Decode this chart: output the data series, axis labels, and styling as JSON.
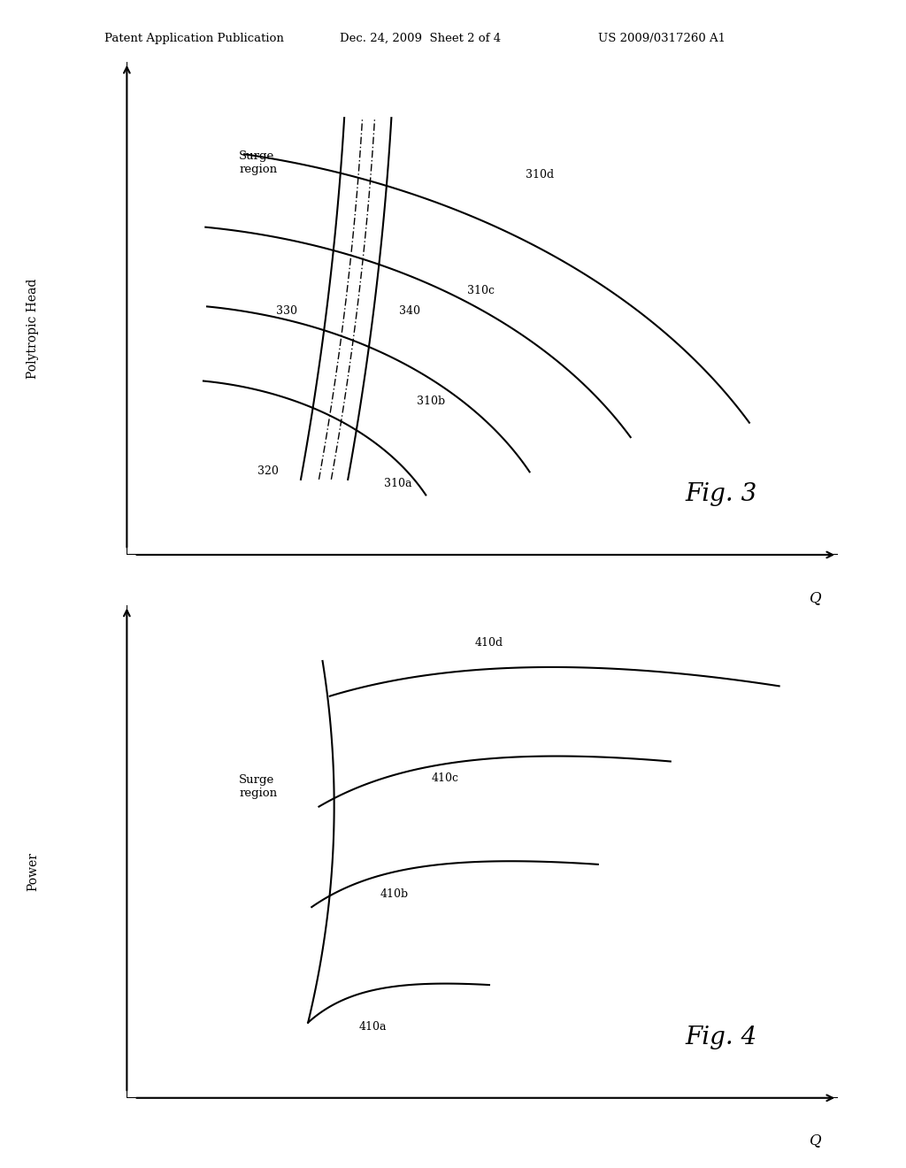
{
  "header_left": "Patent Application Publication",
  "header_mid": "Dec. 24, 2009  Sheet 2 of 4",
  "header_right": "US 2009/0317260 A1",
  "fig3_label": "Fig. 3",
  "fig4_label": "Fig. 4",
  "fig3_ylabel": "Polytropic Head",
  "fig4_ylabel": "Power",
  "xlabel": "Q",
  "fig3_surge_label": "Surge\nregion",
  "fig4_surge_label": "Surge\nregion",
  "bg_color": "#ffffff",
  "line_color": "#000000"
}
